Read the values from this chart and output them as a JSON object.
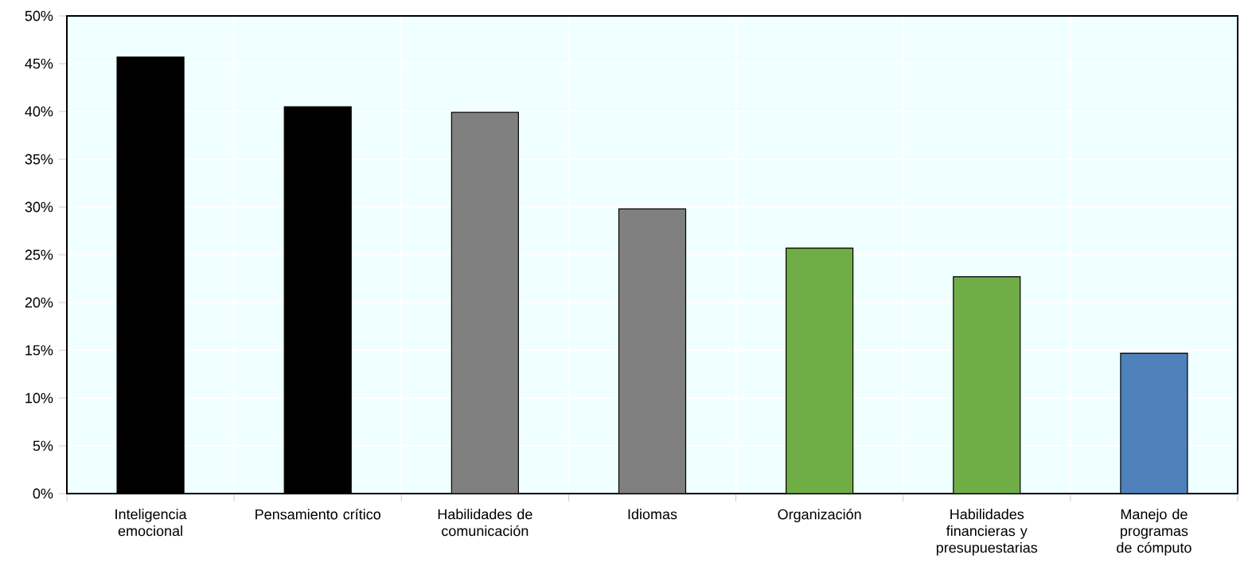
{
  "chart_data": {
    "type": "bar",
    "categories": [
      "Inteligencia emocional",
      "Pensamiento crítico",
      "Habilidades de comunicación",
      "Idiomas",
      "Organización",
      "Habilidades financieras y presupuestarias",
      "Manejo de programas de cómputo"
    ],
    "values": [
      45.7,
      40.5,
      39.9,
      29.8,
      25.7,
      22.7,
      14.7
    ],
    "colors": [
      "#000000",
      "#000000",
      "#808080",
      "#808080",
      "#70ad47",
      "#70ad47",
      "#4f81bd"
    ],
    "ylim": [
      0,
      50
    ],
    "yticks": [
      {
        "value": 0,
        "label": "0%"
      },
      {
        "value": 5,
        "label": "5%"
      },
      {
        "value": 10,
        "label": "10%"
      },
      {
        "value": 15,
        "label": "15%"
      },
      {
        "value": 20,
        "label": "20%"
      },
      {
        "value": 25,
        "label": "25%"
      },
      {
        "value": 30,
        "label": "30%"
      },
      {
        "value": 35,
        "label": "35%"
      },
      {
        "value": 40,
        "label": "40%"
      },
      {
        "value": 45,
        "label": "45%"
      },
      {
        "value": 50,
        "label": "50%"
      }
    ],
    "grid": true
  }
}
